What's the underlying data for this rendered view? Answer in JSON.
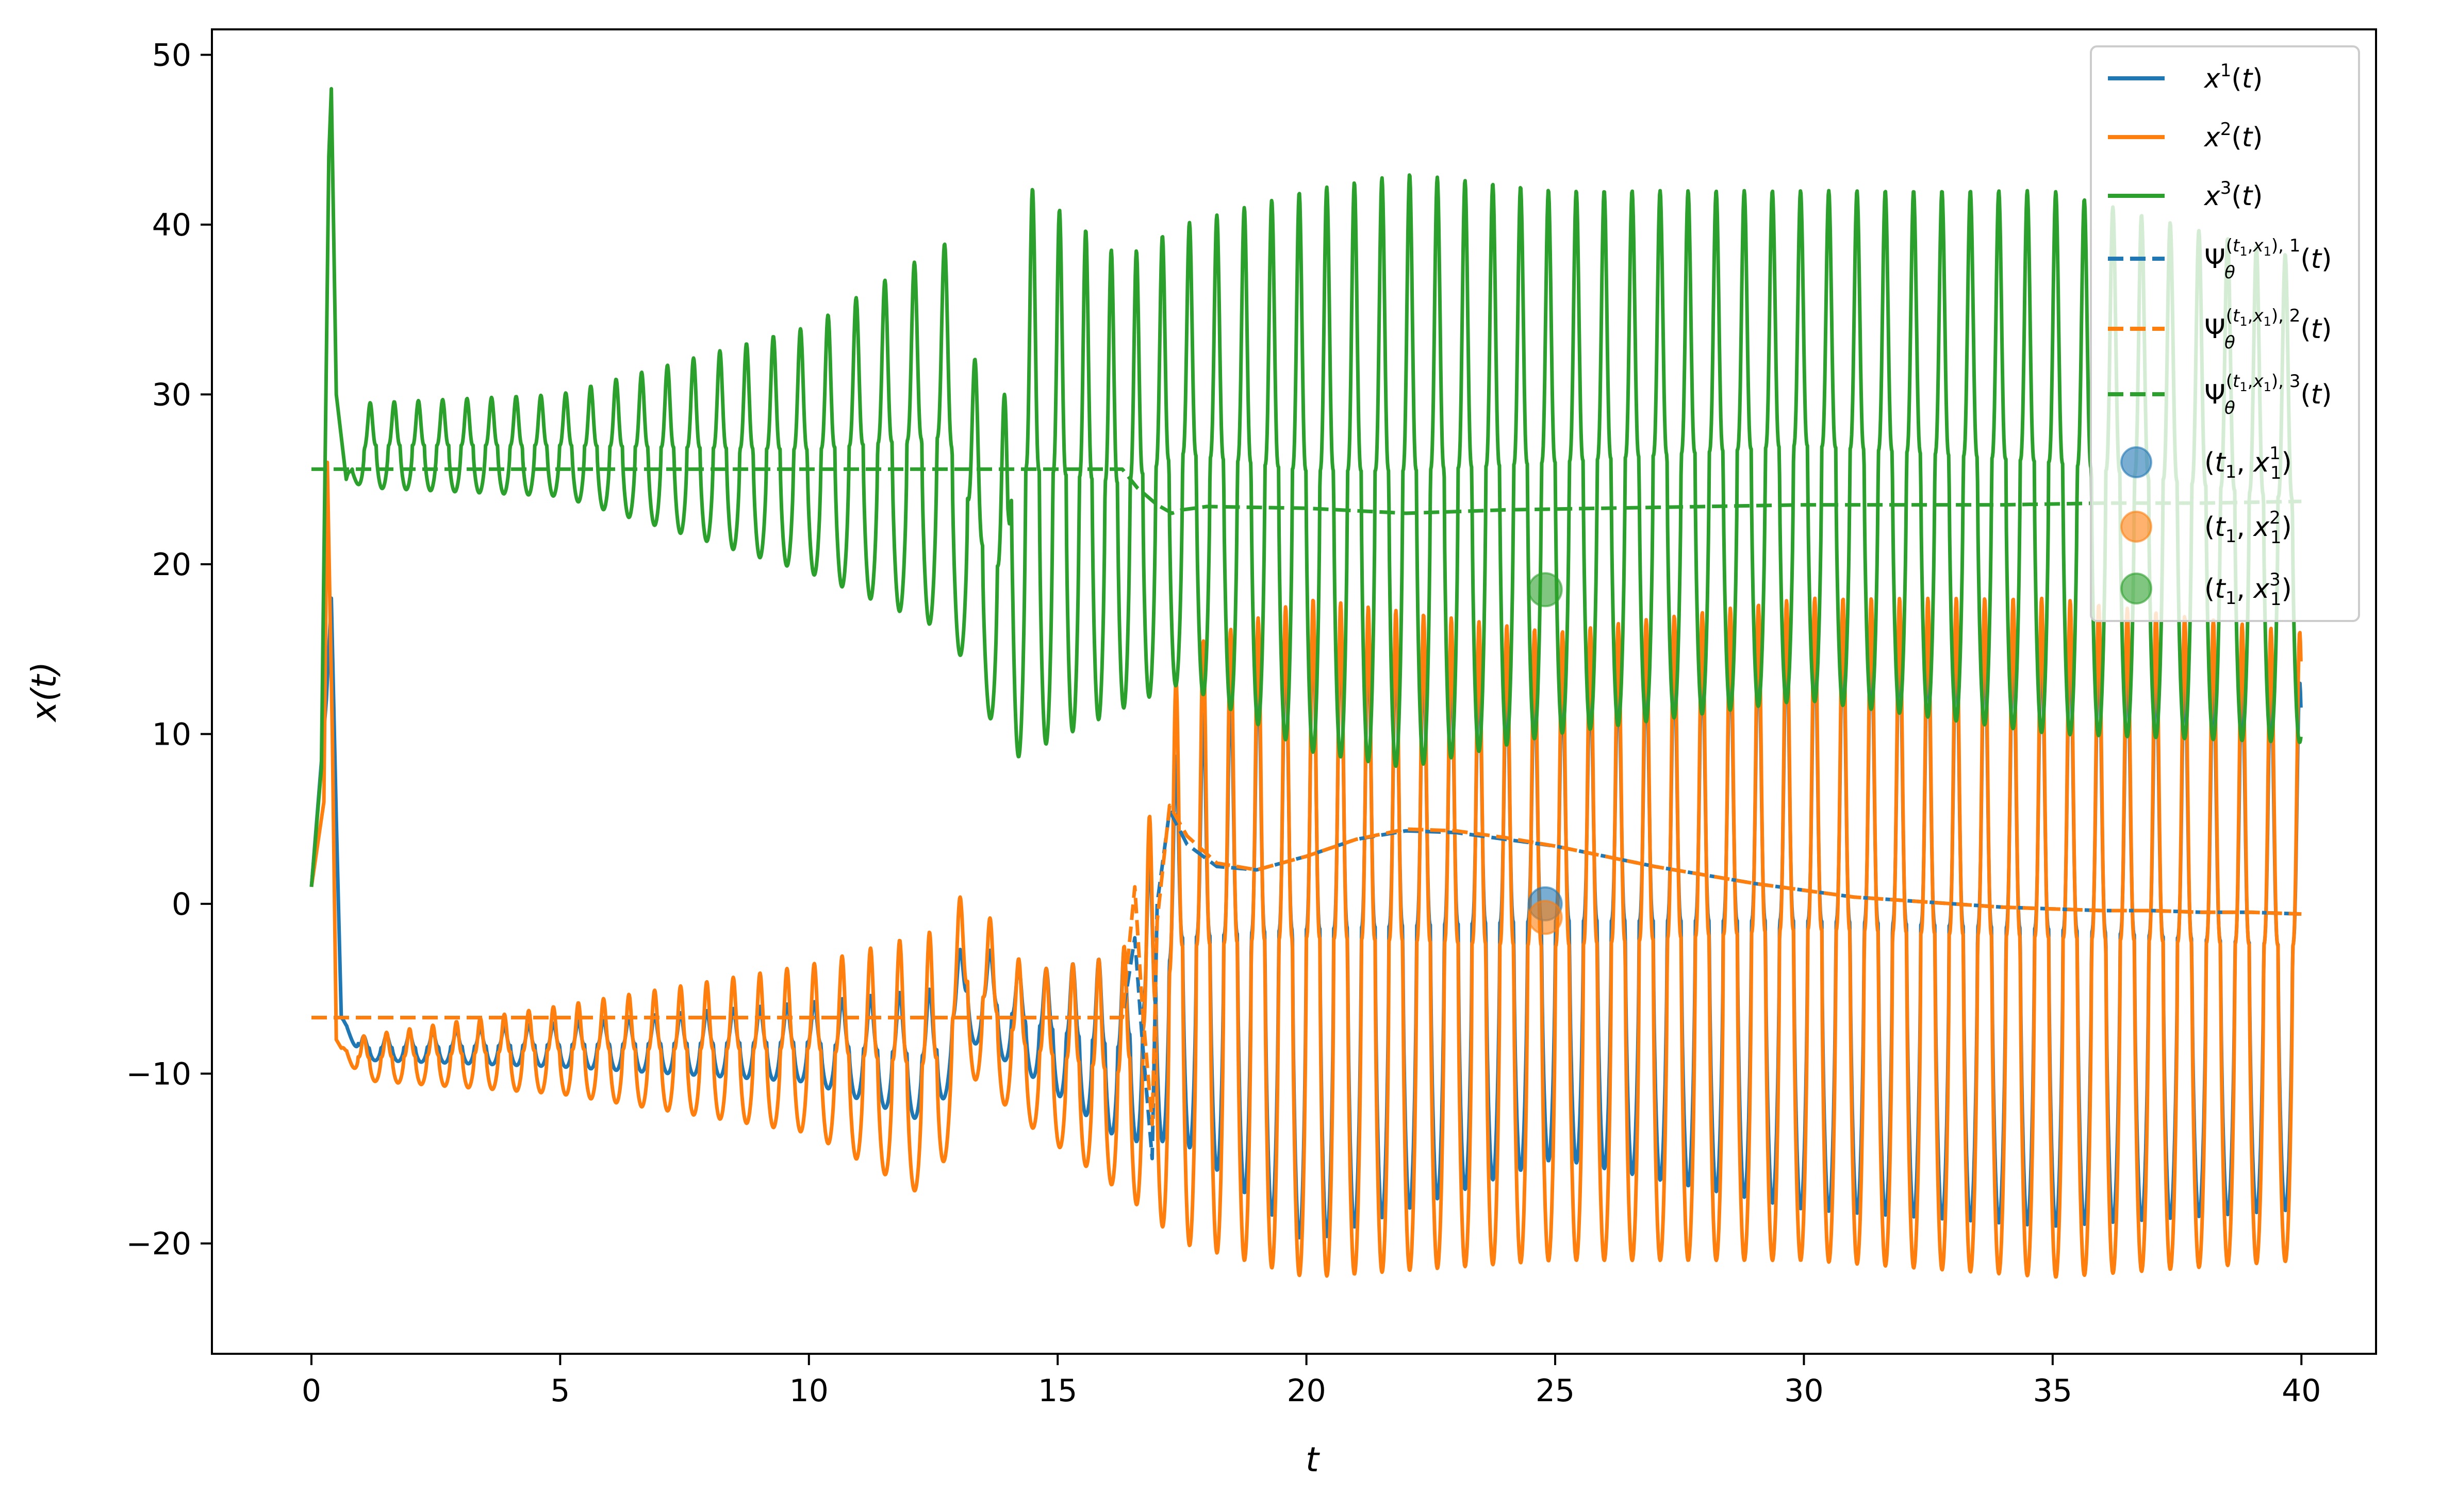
{
  "chart_data": {
    "type": "line",
    "xlabel": "t",
    "ylabel": "x(t)",
    "xlim": [
      -2,
      41.5
    ],
    "ylim": [
      -26.5,
      51.5
    ],
    "xticks": [
      0,
      5,
      10,
      15,
      20,
      25,
      30,
      35,
      40
    ],
    "yticks": [
      -20,
      -10,
      0,
      10,
      20,
      30,
      40,
      50
    ],
    "xtick_labels": [
      "0",
      "5",
      "10",
      "15",
      "20",
      "25",
      "30",
      "35",
      "40"
    ],
    "ytick_labels": [
      "−20",
      "−10",
      "0",
      "10",
      "20",
      "30",
      "40",
      "50"
    ],
    "grid": false,
    "legend_position": "top-right",
    "colors": {
      "c1": "#1f77b4",
      "c2": "#ff7f0e",
      "c3": "#2ca02c"
    },
    "series": [
      {
        "name": "x1(t)",
        "legend_base": "x",
        "legend_sup": "1",
        "legend_tail": "(t)",
        "style": "solid",
        "color": "#1f77b4",
        "points": [
          [
            0,
            1.0
          ],
          [
            0.3,
            12
          ],
          [
            0.4,
            18
          ],
          [
            0.5,
            5
          ],
          [
            0.65,
            -6.5
          ],
          [
            0.9,
            -9
          ],
          [
            1.5,
            -8
          ],
          [
            2.5,
            -8
          ],
          [
            4,
            -8
          ],
          [
            6,
            -8
          ],
          [
            8,
            -8
          ],
          [
            10,
            -8
          ],
          [
            12,
            -8
          ],
          [
            13.2,
            -3
          ],
          [
            13.6,
            0
          ],
          [
            14.0,
            4
          ],
          [
            14.2,
            22
          ],
          [
            14.35,
            -5
          ],
          [
            15,
            -8
          ],
          [
            16,
            -10
          ],
          [
            16.5,
            -3
          ],
          [
            17.0,
            -14
          ],
          [
            17.3,
            0
          ],
          [
            17.6,
            3
          ],
          [
            18.0,
            -3
          ],
          [
            19,
            2
          ],
          [
            20,
            1
          ],
          [
            22,
            -3
          ],
          [
            24,
            0
          ],
          [
            24.9,
            0
          ],
          [
            25.5,
            1
          ],
          [
            27,
            1
          ],
          [
            29,
            0
          ],
          [
            31,
            2
          ],
          [
            33,
            3
          ],
          [
            35,
            0
          ],
          [
            36,
            -3
          ],
          [
            37,
            2
          ],
          [
            38,
            -2
          ],
          [
            39,
            -2
          ],
          [
            39.5,
            0
          ],
          [
            40,
            7
          ]
        ],
        "envelope": [
          [
            0.6,
            -6.7,
            -6.7
          ],
          [
            1,
            -7.8,
            -9.2
          ],
          [
            5,
            -7.0,
            -9.6
          ],
          [
            10,
            -5.8,
            -10.5
          ],
          [
            12.5,
            -5,
            -13
          ],
          [
            13.2,
            -2,
            -8
          ],
          [
            14.4,
            -4,
            -10
          ],
          [
            16.3,
            -3,
            -14
          ],
          [
            17.5,
            10,
            -14
          ],
          [
            20,
            17,
            -20
          ],
          [
            25,
            13,
            -15
          ],
          [
            30,
            16,
            -18
          ],
          [
            35,
            16,
            -19
          ],
          [
            40,
            13,
            -18
          ]
        ],
        "period_pts": [
          [
            0.6,
            0.45
          ],
          [
            5,
            0.5
          ],
          [
            10,
            0.55
          ],
          [
            13,
            0.62
          ],
          [
            14.5,
            0.55
          ],
          [
            16.3,
            0.5
          ],
          [
            17.5,
            0.55
          ],
          [
            40,
            0.58
          ]
        ]
      },
      {
        "name": "x2(t)",
        "legend_base": "x",
        "legend_sup": "2",
        "legend_tail": "(t)",
        "style": "solid",
        "color": "#ff7f0e",
        "points": [
          [
            0,
            1.0
          ],
          [
            0.25,
            6
          ],
          [
            0.32,
            26
          ],
          [
            0.42,
            10
          ],
          [
            0.5,
            -8
          ],
          [
            0.6,
            -8.5
          ],
          [
            0.9,
            -10
          ],
          [
            2,
            -9
          ],
          [
            4,
            -9
          ],
          [
            6,
            -9
          ],
          [
            8,
            -9
          ],
          [
            10,
            -9
          ],
          [
            12,
            -9
          ],
          [
            13.2,
            -4
          ],
          [
            13.6,
            1
          ],
          [
            14.0,
            6
          ],
          [
            14.2,
            23
          ],
          [
            14.4,
            -5
          ],
          [
            15,
            -9
          ],
          [
            16,
            -11
          ],
          [
            16.5,
            -4
          ],
          [
            17.0,
            -20
          ],
          [
            17.3,
            3
          ],
          [
            17.6,
            5
          ],
          [
            18.0,
            -5
          ],
          [
            19,
            2
          ],
          [
            20,
            2
          ],
          [
            22,
            -3
          ],
          [
            24,
            0
          ],
          [
            24.9,
            -1
          ],
          [
            25.5,
            2
          ],
          [
            27,
            1
          ],
          [
            29,
            0
          ],
          [
            31,
            2
          ],
          [
            33,
            3
          ],
          [
            35,
            0
          ],
          [
            36,
            -3
          ],
          [
            37,
            2
          ],
          [
            38,
            -2
          ],
          [
            39,
            -2
          ],
          [
            39.5,
            0
          ],
          [
            40,
            1.5
          ]
        ],
        "envelope": [
          [
            0.6,
            -8.5,
            -8.5
          ],
          [
            1,
            -7.8,
            -10.4
          ],
          [
            5,
            -6.0,
            -11.2
          ],
          [
            10,
            -3.6,
            -13.5
          ],
          [
            12.5,
            -1.6,
            -17.5
          ],
          [
            13.2,
            1,
            -10
          ],
          [
            14.4,
            -4,
            -13
          ],
          [
            16.3,
            -3,
            -17
          ],
          [
            17.5,
            15,
            -20
          ],
          [
            20,
            18,
            -22
          ],
          [
            25,
            16,
            -21
          ],
          [
            30,
            18,
            -21
          ],
          [
            35,
            18,
            -22
          ],
          [
            40,
            16,
            -21
          ]
        ],
        "period_pts": [
          [
            0.6,
            0.45
          ],
          [
            5,
            0.5
          ],
          [
            10,
            0.55
          ],
          [
            13,
            0.62
          ],
          [
            14.5,
            0.55
          ],
          [
            16.3,
            0.5
          ],
          [
            17.5,
            0.55
          ],
          [
            40,
            0.58
          ]
        ]
      },
      {
        "name": "x3(t)",
        "legend_base": "x",
        "legend_sup": "3",
        "legend_tail": "(t)",
        "style": "solid",
        "color": "#2ca02c",
        "points": [
          [
            0,
            1.0
          ],
          [
            0.2,
            8
          ],
          [
            0.35,
            44
          ],
          [
            0.4,
            48
          ],
          [
            0.5,
            30
          ],
          [
            0.7,
            25
          ],
          [
            1.0,
            27
          ]
        ],
        "envelope": [
          [
            0.7,
            25,
            25
          ],
          [
            1.1,
            29.5,
            24.5
          ],
          [
            5,
            30,
            24
          ],
          [
            10,
            34,
            19.5
          ],
          [
            12.8,
            39,
            16
          ],
          [
            13.5,
            30,
            12
          ],
          [
            14.0,
            30,
            8.2
          ],
          [
            14.1,
            43,
            8.5
          ],
          [
            16.3,
            38,
            11.5
          ],
          [
            17.5,
            40,
            13
          ],
          [
            20,
            42,
            9
          ],
          [
            22,
            43,
            8
          ],
          [
            25,
            42,
            10
          ],
          [
            30,
            42,
            12
          ],
          [
            35,
            42,
            10
          ],
          [
            40,
            38,
            9.5
          ]
        ],
        "period_pts": [
          [
            0.7,
            0.48
          ],
          [
            5,
            0.5
          ],
          [
            10,
            0.55
          ],
          [
            13,
            0.62
          ],
          [
            14.5,
            0.55
          ],
          [
            16.3,
            0.5
          ],
          [
            17.5,
            0.55
          ],
          [
            40,
            0.58
          ]
        ]
      },
      {
        "name": "Ψ1",
        "legend_sup_series": "1",
        "style": "dashed",
        "color": "#1f77b4",
        "points": [
          [
            0,
            -6.7
          ],
          [
            16.3,
            -6.7
          ],
          [
            16.55,
            -2
          ],
          [
            16.7,
            -8
          ],
          [
            16.9,
            -15
          ],
          [
            17.0,
            0
          ],
          [
            17.25,
            5.5
          ],
          [
            17.6,
            3.5
          ],
          [
            18.2,
            2.2
          ],
          [
            19,
            2.0
          ],
          [
            20,
            2.8
          ],
          [
            21,
            3.8
          ],
          [
            22,
            4.3
          ],
          [
            23,
            4.2
          ],
          [
            24,
            3.8
          ],
          [
            25,
            3.4
          ],
          [
            26,
            2.8
          ],
          [
            27,
            2.2
          ],
          [
            28,
            1.7
          ],
          [
            29,
            1.2
          ],
          [
            30,
            0.8
          ],
          [
            31,
            0.4
          ],
          [
            32,
            0.2
          ],
          [
            33,
            0.0
          ],
          [
            34,
            -0.2
          ],
          [
            35,
            -0.3
          ],
          [
            36,
            -0.4
          ],
          [
            37,
            -0.4
          ],
          [
            38,
            -0.5
          ],
          [
            39,
            -0.5
          ],
          [
            40,
            -0.6
          ]
        ]
      },
      {
        "name": "Ψ2",
        "legend_sup_series": "2",
        "style": "dashed",
        "color": "#ff7f0e",
        "points": [
          [
            0,
            -6.7
          ],
          [
            16.3,
            -6.7
          ],
          [
            16.55,
            1
          ],
          [
            16.7,
            -6
          ],
          [
            16.9,
            -13
          ],
          [
            17.0,
            -1
          ],
          [
            17.25,
            5.8
          ],
          [
            17.6,
            4
          ],
          [
            18.2,
            2.4
          ],
          [
            19,
            2.0
          ],
          [
            20,
            2.8
          ],
          [
            21,
            3.8
          ],
          [
            22,
            4.4
          ],
          [
            23,
            4.3
          ],
          [
            24,
            3.9
          ],
          [
            25,
            3.4
          ],
          [
            26,
            2.8
          ],
          [
            27,
            2.2
          ],
          [
            28,
            1.7
          ],
          [
            29,
            1.2
          ],
          [
            30,
            0.8
          ],
          [
            31,
            0.4
          ],
          [
            32,
            0.2
          ],
          [
            33,
            0.0
          ],
          [
            34,
            -0.2
          ],
          [
            35,
            -0.3
          ],
          [
            36,
            -0.4
          ],
          [
            37,
            -0.4
          ],
          [
            38,
            -0.5
          ],
          [
            39,
            -0.5
          ],
          [
            40,
            -0.6
          ]
        ]
      },
      {
        "name": "Ψ3",
        "legend_sup_series": "3",
        "style": "dashed",
        "color": "#2ca02c",
        "points": [
          [
            0,
            25.6
          ],
          [
            16.3,
            25.6
          ],
          [
            16.6,
            24.5
          ],
          [
            17.0,
            23.5
          ],
          [
            17.3,
            23.0
          ],
          [
            17.5,
            23.2
          ],
          [
            18,
            23.4
          ],
          [
            20,
            23.3
          ],
          [
            22,
            23.0
          ],
          [
            24,
            23.2
          ],
          [
            26,
            23.3
          ],
          [
            28,
            23.4
          ],
          [
            30,
            23.5
          ],
          [
            32,
            23.5
          ],
          [
            34,
            23.5
          ],
          [
            36,
            23.6
          ],
          [
            38,
            23.6
          ],
          [
            40,
            23.7
          ]
        ]
      }
    ],
    "markers": [
      {
        "name": "(t1, x1^1)",
        "label_sub": "1",
        "label_sup": "1",
        "x": 24.8,
        "y": 0.0,
        "color": "#1f77b4",
        "alpha": 0.6
      },
      {
        "name": "(t1, x1^2)",
        "label_sub": "1",
        "label_sup": "2",
        "x": 24.8,
        "y": -0.8,
        "color": "#ff7f0e",
        "alpha": 0.6
      },
      {
        "name": "(t1, x1^3)",
        "label_sub": "1",
        "label_sup": "3",
        "x": 24.8,
        "y": 18.5,
        "color": "#2ca02c",
        "alpha": 0.6
      }
    ],
    "legend": [
      "x1(t)",
      "x2(t)",
      "x3(t)",
      "Ψθ(t1,x1),1(t)",
      "Ψθ(t1,x1),2(t)",
      "Ψθ(t1,x1),3(t)",
      "(t1,x1^1)",
      "(t1,x1^2)",
      "(t1,x1^3)"
    ]
  }
}
